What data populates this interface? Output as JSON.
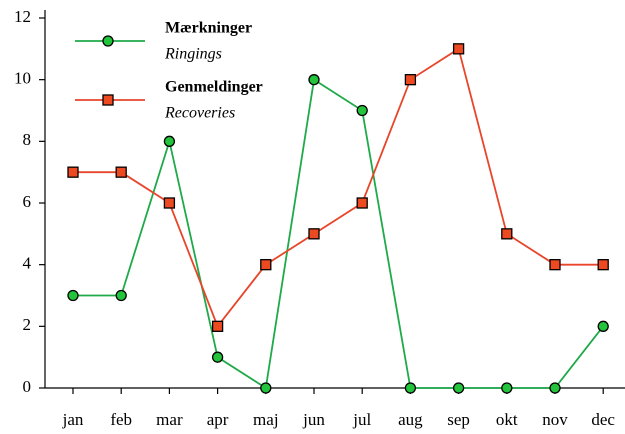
{
  "chart_data": {
    "type": "line",
    "categories": [
      "jan",
      "feb",
      "mar",
      "apr",
      "maj",
      "jun",
      "jul",
      "aug",
      "sep",
      "okt",
      "nov",
      "dec"
    ],
    "series": [
      {
        "name": "Mærkninger",
        "translation": "Ringings",
        "color": "#1faa4a",
        "marker": "circle",
        "marker_color": "#22c43c",
        "values": [
          3,
          3,
          8,
          1,
          0,
          10,
          9,
          0,
          0,
          0,
          0,
          2
        ]
      },
      {
        "name": "Genmeldinger",
        "translation": "Recoveries",
        "color": "#e8452a",
        "marker": "square",
        "marker_color": "#ee4a22",
        "values": [
          7,
          7,
          6,
          2,
          4,
          5,
          6,
          10,
          11,
          5,
          4,
          4
        ]
      }
    ],
    "ylim": [
      0,
      12
    ],
    "yticks": [
      0,
      2,
      4,
      6,
      8,
      10,
      12
    ],
    "grid": false
  }
}
